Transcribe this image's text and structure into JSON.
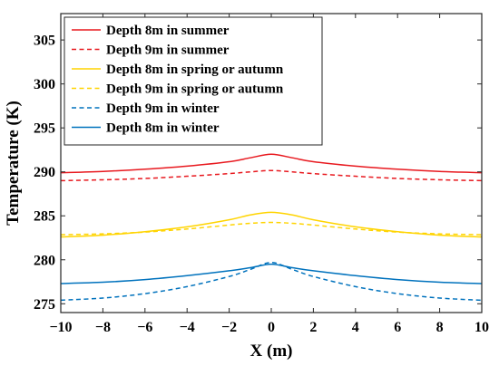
{
  "chart_data": {
    "type": "line",
    "title": "",
    "xlabel": "X (m)",
    "ylabel": "Temperature (K)",
    "xlim": [
      -10,
      10
    ],
    "ylim": [
      274,
      308
    ],
    "xticks": [
      -10,
      -8,
      -6,
      -4,
      -2,
      0,
      2,
      4,
      6,
      8,
      10
    ],
    "xtick_labels": [
      "−10",
      "−8",
      "−6",
      "−4",
      "−2",
      "0",
      "2",
      "4",
      "6",
      "8",
      "10"
    ],
    "yticks": [
      275,
      280,
      285,
      290,
      295,
      300,
      305
    ],
    "ytick_labels": [
      "275",
      "280",
      "285",
      "290",
      "295",
      "300",
      "305"
    ],
    "grid": false,
    "legend_position": "top-left",
    "series": [
      {
        "name": "Depth 8m in summer",
        "color": "#e8191f",
        "dashed": false,
        "x": [
          -10,
          -8,
          -6,
          -4,
          -2,
          -1,
          0,
          1,
          2,
          4,
          6,
          8,
          10
        ],
        "y": [
          289.9,
          290.05,
          290.3,
          290.65,
          291.15,
          291.6,
          292.0,
          291.6,
          291.15,
          290.65,
          290.3,
          290.05,
          289.9
        ]
      },
      {
        "name": "Depth 9m in summer",
        "color": "#e8191f",
        "dashed": true,
        "x": [
          -10,
          -8,
          -6,
          -4,
          -2,
          -1,
          0,
          1,
          2,
          4,
          6,
          8,
          10
        ],
        "y": [
          289.0,
          289.1,
          289.25,
          289.5,
          289.8,
          290.0,
          290.15,
          290.0,
          289.8,
          289.5,
          289.25,
          289.1,
          289.0
        ]
      },
      {
        "name": "Depth 8m in spring or autumn",
        "color": "#ffd400",
        "dashed": false,
        "x": [
          -10,
          -8,
          -6,
          -4,
          -2,
          -1,
          0,
          1,
          2,
          4,
          6,
          8,
          10
        ],
        "y": [
          282.6,
          282.8,
          283.2,
          283.75,
          284.55,
          285.1,
          285.4,
          285.1,
          284.55,
          283.75,
          283.2,
          282.8,
          282.6
        ]
      },
      {
        "name": "Depth 9m in spring or autumn",
        "color": "#ffd400",
        "dashed": true,
        "x": [
          -10,
          -8,
          -6,
          -4,
          -2,
          -1,
          0,
          1,
          2,
          4,
          6,
          8,
          10
        ],
        "y": [
          282.85,
          282.95,
          283.15,
          283.5,
          283.95,
          284.15,
          284.25,
          284.15,
          283.95,
          283.5,
          283.15,
          282.95,
          282.85
        ]
      },
      {
        "name": "Depth 9m in winter",
        "color": "#0072bd",
        "dashed": true,
        "x": [
          -10,
          -8,
          -6,
          -4,
          -2,
          -1,
          0,
          1,
          2,
          4,
          6,
          8,
          10
        ],
        "y": [
          275.4,
          275.65,
          276.15,
          276.95,
          278.1,
          278.9,
          279.7,
          278.9,
          278.1,
          276.95,
          276.15,
          275.65,
          275.4
        ]
      },
      {
        "name": "Depth 8m in winter",
        "color": "#0072bd",
        "dashed": false,
        "x": [
          -10,
          -8,
          -6,
          -4,
          -2,
          -1,
          0,
          1,
          2,
          4,
          6,
          8,
          10
        ],
        "y": [
          277.3,
          277.45,
          277.75,
          278.2,
          278.75,
          279.1,
          279.5,
          279.1,
          278.75,
          278.2,
          277.75,
          277.45,
          277.3
        ]
      }
    ]
  }
}
